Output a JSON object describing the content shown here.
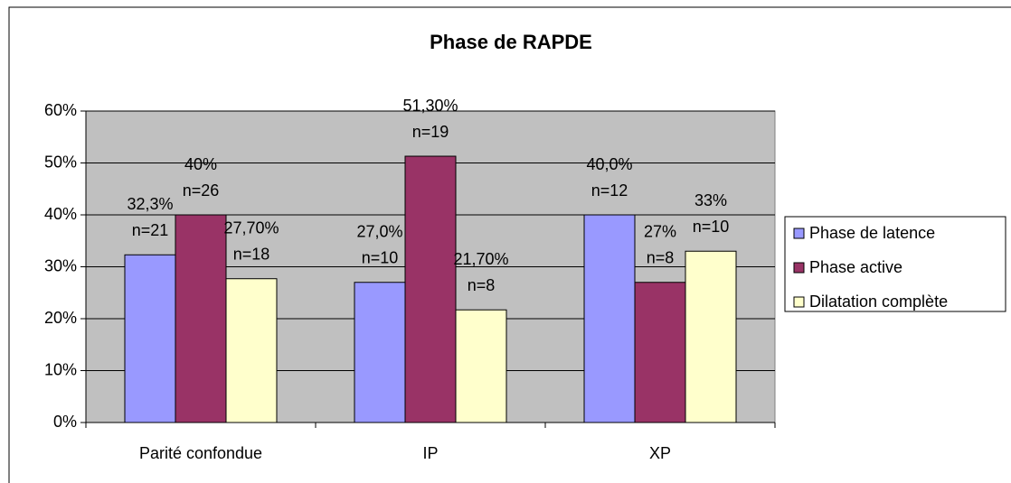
{
  "chart_data": {
    "type": "bar",
    "title": "Phase de RAPDE",
    "categories": [
      "Parité confondue",
      "IP",
      "XP"
    ],
    "series": [
      {
        "name": "Phase de latence",
        "color": "#9999ff",
        "values": [
          32.3,
          27.0,
          40.0
        ],
        "value_labels": [
          "32,3%",
          "27,0%",
          "40,0%"
        ],
        "n_labels": [
          "n=21",
          "n=10",
          "n=12"
        ]
      },
      {
        "name": "Phase active",
        "color": "#993366",
        "values": [
          40,
          51.3,
          27
        ],
        "value_labels": [
          "40%",
          "51,30%",
          "27%"
        ],
        "n_labels": [
          "n=26",
          "n=19",
          "n=8"
        ]
      },
      {
        "name": "Dilatation complète",
        "color": "#ffffcc",
        "values": [
          27.7,
          21.7,
          33
        ],
        "value_labels": [
          "27,70%",
          "21,70%",
          "33%"
        ],
        "n_labels": [
          "n=18",
          "n=8",
          "n=10"
        ]
      }
    ],
    "ylim": [
      0,
      60
    ],
    "yticks": [
      {
        "value": 0,
        "label": "0%"
      },
      {
        "value": 10,
        "label": "10%"
      },
      {
        "value": 20,
        "label": "20%"
      },
      {
        "value": 30,
        "label": "30%"
      },
      {
        "value": 40,
        "label": "40%"
      },
      {
        "value": 50,
        "label": "50%"
      },
      {
        "value": 60,
        "label": "60%"
      }
    ],
    "grid": true,
    "legend": "right"
  }
}
